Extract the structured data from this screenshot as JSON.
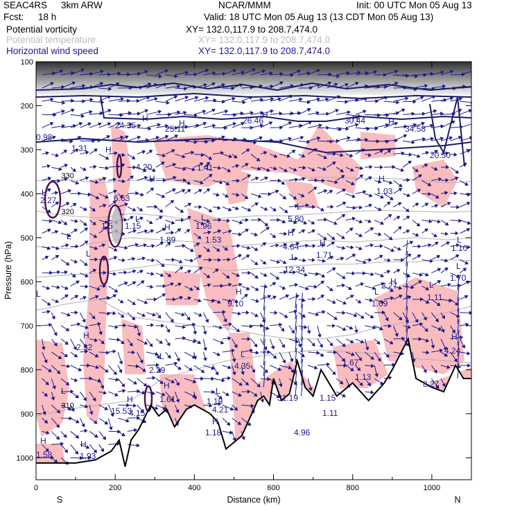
{
  "header": {
    "project": "SEAC4RS",
    "model": "3km ARW",
    "center": "NCAR/MMM",
    "init": "Init: 00 UTC Mon 05 Aug 13",
    "fcst_label": "Fcst:",
    "fcst_value": "18 h",
    "valid": "Valid: 18 UTC Mon 05 Aug 13 (13 CDT Mon 05 Aug 13)"
  },
  "fields": [
    {
      "name": "Potential vorticity",
      "xy": "XY= 132.0,117.9 to 208.7,474.0",
      "color": "#000000"
    },
    {
      "name": "Potential temperature",
      "xy": "XY= 132.0,117.9 to 208.7,474.0",
      "color": "#bdbdbd"
    },
    {
      "name": "Horizontal wind speed",
      "xy": "XY= 132.0,117.9 to 208.7,474.0",
      "color": "#1a1a8c"
    }
  ],
  "chart_data": {
    "type": "cross-section",
    "xlabel": "Distance (km)",
    "ylabel": "Pressure (hPa)",
    "x_range": [
      0,
      1100
    ],
    "y_range": [
      1050,
      100
    ],
    "x_ticks": [
      0,
      200,
      400,
      600,
      800,
      1000
    ],
    "y_ticks": [
      100,
      200,
      300,
      400,
      500,
      600,
      700,
      800,
      900,
      1000
    ],
    "left_end_label": "S",
    "right_end_label": "N",
    "theta_contours": [
      {
        "label": "330",
        "points": [
          [
            0,
            370
          ],
          [
            80,
            368
          ],
          [
            160,
            375
          ],
          [
            240,
            370
          ],
          [
            320,
            365
          ],
          [
            400,
            370
          ],
          [
            480,
            372
          ],
          [
            560,
            375
          ],
          [
            640,
            368
          ],
          [
            720,
            362
          ],
          [
            800,
            365
          ],
          [
            880,
            365
          ],
          [
            960,
            368
          ],
          [
            1000,
            372
          ],
          [
            1040,
            375
          ],
          [
            1100,
            372
          ]
        ]
      },
      {
        "label": "320",
        "points": [
          [
            0,
            440
          ],
          [
            80,
            450
          ],
          [
            160,
            455
          ],
          [
            240,
            445
          ],
          [
            320,
            450
          ],
          [
            400,
            460
          ],
          [
            480,
            455
          ],
          [
            560,
            450
          ],
          [
            640,
            450
          ],
          [
            720,
            445
          ],
          [
            800,
            440
          ],
          [
            880,
            438
          ],
          [
            960,
            440
          ],
          [
            1040,
            442
          ],
          [
            1100,
            440
          ]
        ]
      },
      {
        "label": "",
        "points": [
          [
            0,
            520
          ],
          [
            80,
            525
          ],
          [
            160,
            510
          ],
          [
            240,
            500
          ],
          [
            320,
            505
          ],
          [
            400,
            510
          ],
          [
            480,
            520
          ],
          [
            560,
            515
          ],
          [
            640,
            510
          ],
          [
            720,
            505
          ],
          [
            800,
            510
          ],
          [
            880,
            505
          ],
          [
            960,
            500
          ],
          [
            1040,
            505
          ],
          [
            1100,
            500
          ]
        ]
      },
      {
        "label": "",
        "points": [
          [
            0,
            590
          ],
          [
            80,
            585
          ],
          [
            160,
            580
          ],
          [
            240,
            570
          ],
          [
            320,
            560
          ],
          [
            400,
            565
          ],
          [
            480,
            575
          ],
          [
            560,
            570
          ],
          [
            640,
            565
          ],
          [
            720,
            560
          ],
          [
            800,
            560
          ],
          [
            880,
            555
          ],
          [
            960,
            555
          ],
          [
            1040,
            550
          ],
          [
            1100,
            552
          ]
        ]
      },
      {
        "label": "",
        "points": [
          [
            0,
            665
          ],
          [
            80,
            650
          ],
          [
            160,
            640
          ],
          [
            240,
            680
          ],
          [
            320,
            690
          ],
          [
            400,
            700
          ],
          [
            480,
            705
          ],
          [
            560,
            720
          ],
          [
            640,
            730
          ],
          [
            720,
            730
          ],
          [
            800,
            720
          ],
          [
            880,
            700
          ],
          [
            960,
            690
          ],
          [
            1040,
            670
          ],
          [
            1100,
            655
          ]
        ]
      },
      {
        "label": "310",
        "points": [
          [
            0,
            905
          ],
          [
            80,
            890
          ],
          [
            160,
            880
          ],
          [
            240,
            870
          ],
          [
            320,
            820
          ],
          [
            400,
            800
          ],
          [
            480,
            780
          ],
          [
            560,
            770
          ],
          [
            640,
            760
          ],
          [
            720,
            755
          ],
          [
            800,
            760
          ],
          [
            880,
            765
          ],
          [
            960,
            775
          ],
          [
            1040,
            780
          ],
          [
            1100,
            785
          ]
        ]
      }
    ],
    "terrain": [
      [
        0,
        1012
      ],
      [
        100,
        1012
      ],
      [
        150,
        1005
      ],
      [
        190,
        985
      ],
      [
        210,
        960
      ],
      [
        225,
        1020
      ],
      [
        240,
        960
      ],
      [
        260,
        935
      ],
      [
        290,
        880
      ],
      [
        310,
        905
      ],
      [
        330,
        890
      ],
      [
        350,
        930
      ],
      [
        380,
        890
      ],
      [
        400,
        880
      ],
      [
        440,
        900
      ],
      [
        460,
        920
      ],
      [
        480,
        980
      ],
      [
        520,
        950
      ],
      [
        545,
        900
      ],
      [
        560,
        870
      ],
      [
        575,
        860
      ],
      [
        590,
        880
      ],
      [
        600,
        820
      ],
      [
        620,
        870
      ],
      [
        640,
        855
      ],
      [
        660,
        780
      ],
      [
        680,
        840
      ],
      [
        700,
        860
      ],
      [
        720,
        800
      ],
      [
        760,
        860
      ],
      [
        800,
        830
      ],
      [
        840,
        870
      ],
      [
        880,
        830
      ],
      [
        900,
        800
      ],
      [
        940,
        730
      ],
      [
        960,
        820
      ],
      [
        1000,
        840
      ],
      [
        1030,
        850
      ],
      [
        1060,
        790
      ],
      [
        1080,
        820
      ],
      [
        1100,
        820
      ]
    ],
    "pv_labels": [
      "1.5",
      "1.15",
      "2.27",
      "0.98",
      "1.31",
      "24.35",
      "25.11",
      "26.46",
      "30.44",
      "34.58",
      "4.20",
      "6.63",
      "1.41",
      "1.89",
      "1.96",
      "1.53",
      "5.80",
      "4.64",
      "12.34",
      "1.71",
      "1.03",
      "1.10",
      "1.70",
      "9.10",
      "2.27",
      "1.09",
      "1.11",
      "2.32",
      "2.29",
      "4.35",
      "4.21",
      "1.61",
      "1.19",
      "1.18",
      "1.58",
      "1.93",
      "15.53",
      "4.15",
      "1.67",
      "1.13",
      "8.27",
      "4.24",
      "4.96",
      "31.19",
      "1.15",
      "1.11",
      "20.50"
    ],
    "maxmin_marks": [
      {
        "text": "H",
        "x": 205,
        "y": 175
      },
      {
        "text": "H",
        "x": 258,
        "y": 182
      },
      {
        "text": "H",
        "x": 378,
        "y": 170
      },
      {
        "text": "H",
        "x": 508,
        "y": 175
      },
      {
        "text": "H",
        "x": 560,
        "y": 180
      },
      {
        "text": "H",
        "x": 152,
        "y": 220
      },
      {
        "text": "L",
        "x": 298,
        "y": 245
      },
      {
        "text": "L",
        "x": 172,
        "y": 310
      },
      {
        "text": "H",
        "x": 215,
        "y": 262
      },
      {
        "text": "H",
        "x": 546,
        "y": 262
      },
      {
        "text": "L",
        "x": 60,
        "y": 282
      },
      {
        "text": "L",
        "x": 428,
        "y": 302
      },
      {
        "text": "H",
        "x": 237,
        "y": 332
      },
      {
        "text": "L",
        "x": 290,
        "y": 318
      },
      {
        "text": "L",
        "x": 195,
        "y": 320
      },
      {
        "text": "H",
        "x": 415,
        "y": 340
      },
      {
        "text": "H",
        "x": 461,
        "y": 355
      },
      {
        "text": "L",
        "x": 420,
        "y": 375
      },
      {
        "text": "L",
        "x": 96,
        "y": 345
      },
      {
        "text": "L",
        "x": 124,
        "y": 370
      },
      {
        "text": "L",
        "x": 659,
        "y": 350
      },
      {
        "text": "L",
        "x": 658,
        "y": 388
      },
      {
        "text": "H",
        "x": 340,
        "y": 425
      },
      {
        "text": "L",
        "x": 52,
        "y": 428
      },
      {
        "text": "H",
        "x": 563,
        "y": 410
      },
      {
        "text": "L",
        "x": 540,
        "y": 425
      },
      {
        "text": "L",
        "x": 619,
        "y": 415
      },
      {
        "text": "H",
        "x": 120,
        "y": 488
      },
      {
        "text": "L",
        "x": 230,
        "y": 518
      },
      {
        "text": "L",
        "x": 347,
        "y": 515
      },
      {
        "text": "L",
        "x": 311,
        "y": 568
      },
      {
        "text": "H",
        "x": 236,
        "y": 560
      },
      {
        "text": "H",
        "x": 651,
        "y": 490
      },
      {
        "text": "L",
        "x": 88,
        "y": 568
      },
      {
        "text": "H",
        "x": 183,
        "y": 580
      },
      {
        "text": "H",
        "x": 306,
        "y": 612
      },
      {
        "text": "H",
        "x": 58,
        "y": 640
      },
      {
        "text": "H",
        "x": 116,
        "y": 645
      }
    ]
  }
}
